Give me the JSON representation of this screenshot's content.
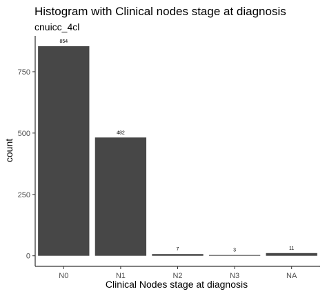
{
  "chart_data": {
    "type": "bar",
    "title": "Histogram with Clinical nodes stage at diagnosis",
    "subtitle": "cnuicc_4cl",
    "xlabel": "Clinical Nodes stage at diagnosis",
    "ylabel": "count",
    "categories": [
      "N0",
      "N1",
      "N2",
      "N3",
      "NA"
    ],
    "values": [
      854,
      482,
      7,
      3,
      11
    ],
    "data_labels": [
      "854",
      "482",
      "7",
      "3",
      "11"
    ],
    "yticks": [
      0,
      250,
      500,
      750
    ],
    "ytick_labels": [
      "0",
      "250",
      "500",
      "750"
    ],
    "ylim": [
      -43,
      896
    ],
    "grid": false,
    "bar_color": "#474747",
    "axis_color": "#000000"
  }
}
